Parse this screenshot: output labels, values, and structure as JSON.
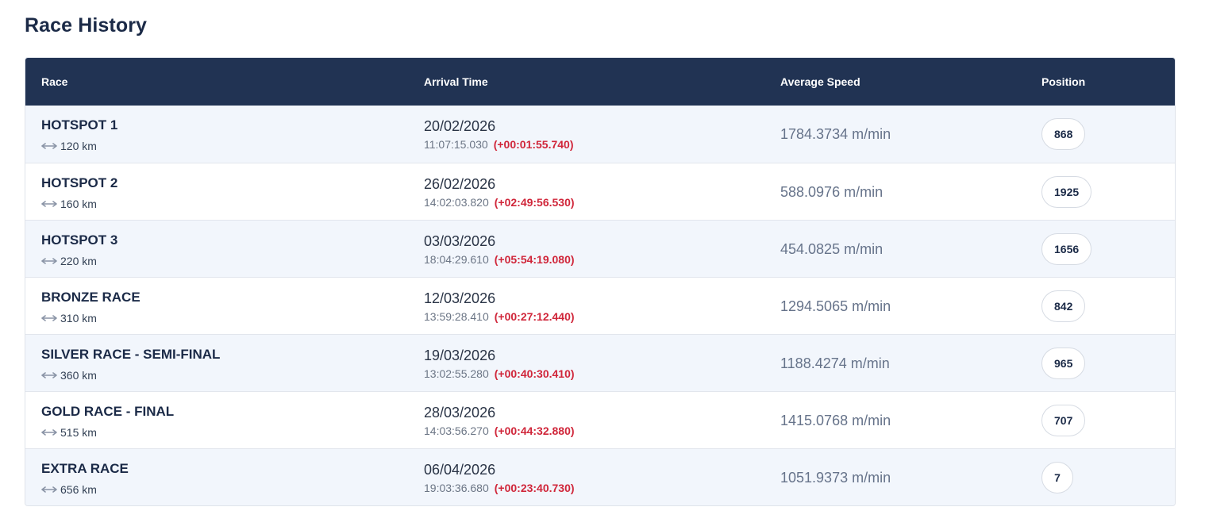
{
  "page": {
    "title": "Race History"
  },
  "table": {
    "headers": {
      "race": "Race",
      "arrival": "Arrival Time",
      "speed": "Average Speed",
      "position": "Position"
    },
    "rows": [
      {
        "race": "HOTSPOT 1",
        "distance": "120 km",
        "date": "20/02/2026",
        "time": "11:07:15.030",
        "delta": "(+00:01:55.740)",
        "speed": "1784.3734 m/min",
        "position": "868"
      },
      {
        "race": "HOTSPOT 2",
        "distance": "160 km",
        "date": "26/02/2026",
        "time": "14:02:03.820",
        "delta": "(+02:49:56.530)",
        "speed": "588.0976 m/min",
        "position": "1925"
      },
      {
        "race": "HOTSPOT 3",
        "distance": "220 km",
        "date": "03/03/2026",
        "time": "18:04:29.610",
        "delta": "(+05:54:19.080)",
        "speed": "454.0825 m/min",
        "position": "1656"
      },
      {
        "race": "BRONZE RACE",
        "distance": "310 km",
        "date": "12/03/2026",
        "time": "13:59:28.410",
        "delta": "(+00:27:12.440)",
        "speed": "1294.5065 m/min",
        "position": "842"
      },
      {
        "race": "SILVER RACE - SEMI-FINAL",
        "distance": "360 km",
        "date": "19/03/2026",
        "time": "13:02:55.280",
        "delta": "(+00:40:30.410)",
        "speed": "1188.4274 m/min",
        "position": "965"
      },
      {
        "race": "GOLD RACE - FINAL",
        "distance": "515 km",
        "date": "28/03/2026",
        "time": "14:03:56.270",
        "delta": "(+00:44:32.880)",
        "speed": "1415.0768 m/min",
        "position": "707"
      },
      {
        "race": "EXTRA RACE",
        "distance": "656 km",
        "date": "06/04/2026",
        "time": "19:03:36.680",
        "delta": "(+00:23:40.730)",
        "speed": "1051.9373 m/min",
        "position": "7"
      }
    ]
  },
  "colors": {
    "header_bg": "#213353",
    "row_alt_bg": "#f2f6fc",
    "delta_red": "#d0263a",
    "title_text": "#1b2a47"
  },
  "icons": {
    "distance": "double-arrow-icon"
  }
}
